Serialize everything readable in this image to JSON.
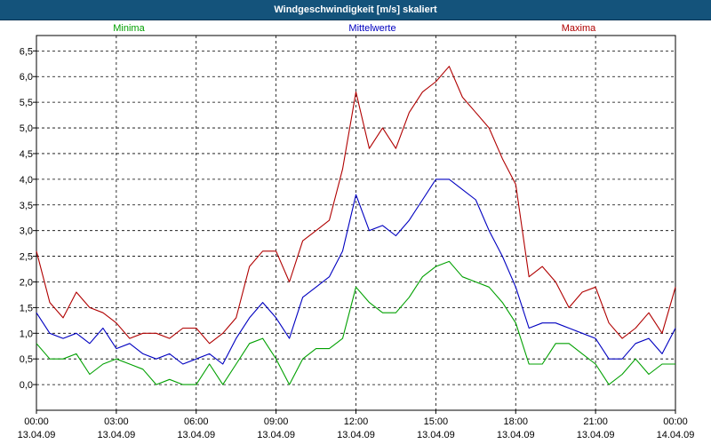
{
  "window": {
    "title": "Windgeschwindigkeit [m/s] skaliert"
  },
  "chart_data": {
    "type": "line",
    "title": "Windgeschwindigkeit [m/s] skaliert",
    "xlabel": "",
    "ylabel": "",
    "ylim": [
      -0.5,
      6.8
    ],
    "xlim_hours": [
      0,
      24
    ],
    "yticks": [
      "0,0",
      "0,5",
      "1,0",
      "1,5",
      "2,0",
      "2,5",
      "3,0",
      "3,5",
      "4,0",
      "4,5",
      "5,0",
      "5,5",
      "6,0",
      "6,5"
    ],
    "xticks": [
      {
        "time": "00:00",
        "date": "13.04.09"
      },
      {
        "time": "03:00",
        "date": "13.04.09"
      },
      {
        "time": "06:00",
        "date": "13.04.09"
      },
      {
        "time": "09:00",
        "date": "13.04.09"
      },
      {
        "time": "12:00",
        "date": "13.04.09"
      },
      {
        "time": "15:00",
        "date": "13.04.09"
      },
      {
        "time": "18:00",
        "date": "13.04.09"
      },
      {
        "time": "21:00",
        "date": "13.04.09"
      },
      {
        "time": "00:00",
        "date": "14.04.09"
      }
    ],
    "grid": true,
    "legend": "top, inline",
    "series": [
      {
        "name": "Minima",
        "color": "#00a000",
        "x_hours": [
          0,
          0.5,
          1,
          1.5,
          2,
          2.5,
          3,
          3.5,
          4,
          4.5,
          5,
          5.5,
          6,
          6.5,
          7,
          7.5,
          8,
          8.5,
          9,
          9.5,
          10,
          10.5,
          11,
          11.5,
          12,
          12.5,
          13,
          13.5,
          14,
          14.5,
          15,
          15.5,
          16,
          16.5,
          17,
          17.5,
          18,
          18.5,
          19,
          19.5,
          20,
          20.5,
          21,
          21.5,
          22,
          22.5,
          23,
          23.5,
          24
        ],
        "values": [
          0.8,
          0.5,
          0.5,
          0.6,
          0.2,
          0.4,
          0.5,
          0.4,
          0.3,
          0.0,
          0.1,
          0.0,
          0.0,
          0.4,
          0.0,
          0.4,
          0.8,
          0.9,
          0.5,
          0.0,
          0.5,
          0.7,
          0.7,
          0.9,
          1.9,
          1.6,
          1.4,
          1.4,
          1.7,
          2.1,
          2.3,
          2.4,
          2.1,
          2.0,
          1.9,
          1.6,
          1.2,
          0.4,
          0.4,
          0.8,
          0.8,
          0.6,
          0.4,
          0.0,
          0.2,
          0.5,
          0.2,
          0.4,
          0.4
        ]
      },
      {
        "name": "Mittelwerte",
        "color": "#0000c0",
        "x_hours": [
          0,
          0.5,
          1,
          1.5,
          2,
          2.5,
          3,
          3.5,
          4,
          4.5,
          5,
          5.5,
          6,
          6.5,
          7,
          7.5,
          8,
          8.5,
          9,
          9.5,
          10,
          10.5,
          11,
          11.5,
          12,
          12.5,
          13,
          13.5,
          14,
          14.5,
          15,
          15.5,
          16,
          16.5,
          17,
          17.5,
          18,
          18.5,
          19,
          19.5,
          20,
          20.5,
          21,
          21.5,
          22,
          22.5,
          23,
          23.5,
          24
        ],
        "values": [
          1.4,
          1.0,
          0.9,
          1.0,
          0.8,
          1.1,
          0.7,
          0.8,
          0.6,
          0.5,
          0.6,
          0.4,
          0.5,
          0.6,
          0.4,
          0.9,
          1.3,
          1.6,
          1.3,
          0.9,
          1.7,
          1.9,
          2.1,
          2.6,
          3.7,
          3.0,
          3.1,
          2.9,
          3.2,
          3.6,
          4.0,
          4.0,
          3.8,
          3.6,
          3.0,
          2.5,
          1.9,
          1.1,
          1.2,
          1.2,
          1.1,
          1.0,
          0.9,
          0.5,
          0.5,
          0.8,
          0.9,
          0.6,
          1.1
        ]
      },
      {
        "name": "Maxima",
        "color": "#b00000",
        "x_hours": [
          0,
          0.5,
          1,
          1.5,
          2,
          2.5,
          3,
          3.5,
          4,
          4.5,
          5,
          5.5,
          6,
          6.5,
          7,
          7.5,
          8,
          8.5,
          9,
          9.5,
          10,
          10.5,
          11,
          11.5,
          12,
          12.5,
          13,
          13.5,
          14,
          14.5,
          15,
          15.5,
          16,
          16.5,
          17,
          17.5,
          18,
          18.5,
          19,
          19.5,
          20,
          20.5,
          21,
          21.5,
          22,
          22.5,
          23,
          23.5,
          24
        ],
        "values": [
          2.6,
          1.6,
          1.3,
          1.8,
          1.5,
          1.4,
          1.2,
          0.9,
          1.0,
          1.0,
          0.9,
          1.1,
          1.1,
          0.8,
          1.0,
          1.3,
          2.3,
          2.6,
          2.6,
          2.0,
          2.8,
          3.0,
          3.2,
          4.2,
          5.7,
          4.6,
          5.0,
          4.6,
          5.3,
          5.7,
          5.9,
          6.2,
          5.6,
          5.3,
          5.0,
          4.4,
          3.9,
          2.1,
          2.3,
          2.0,
          1.5,
          1.8,
          1.9,
          1.2,
          0.9,
          1.1,
          1.4,
          1.0,
          1.9
        ]
      }
    ]
  }
}
